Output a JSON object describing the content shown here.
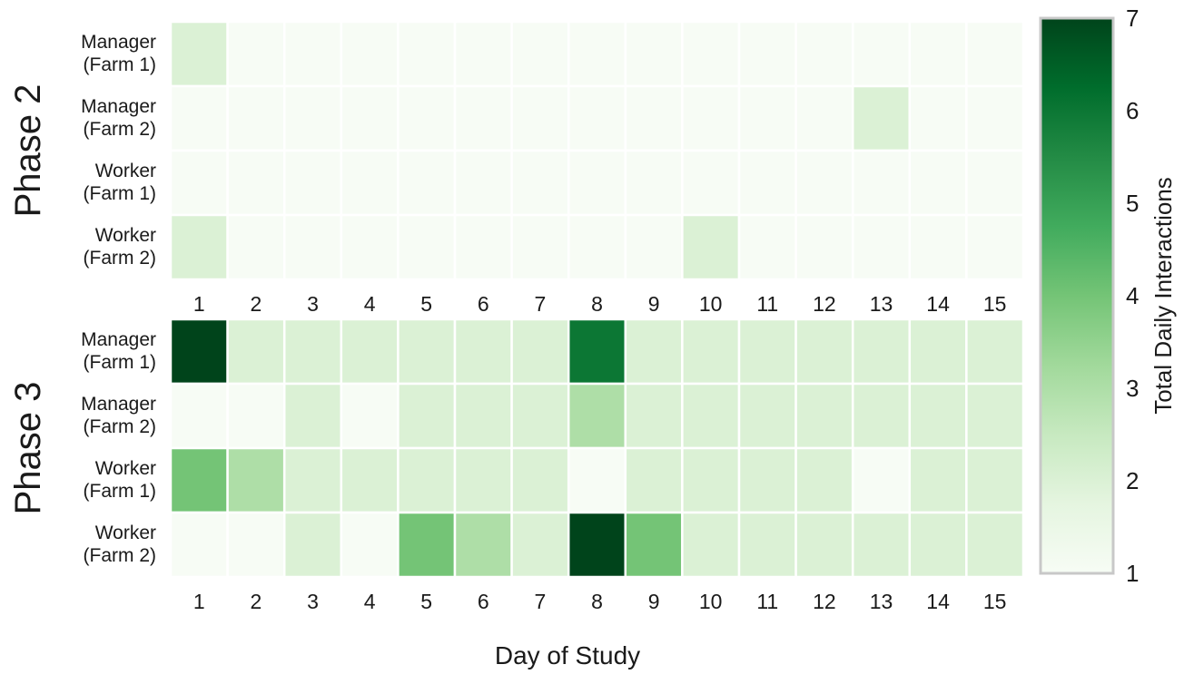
{
  "chart_data": {
    "type": "heatmap",
    "xlabel": "Day of Study",
    "colorbar": {
      "label": "Total Daily Interactions",
      "min": 1,
      "max": 7,
      "ticks": [
        "1",
        "2",
        "3",
        "4",
        "5",
        "6",
        "7"
      ],
      "colors": [
        "#f7fcf5",
        "#e5f5e0",
        "#c7e9c0",
        "#a1d99b",
        "#74c476",
        "#41ab5d",
        "#238b45",
        "#006d2c",
        "#00441b"
      ]
    },
    "x_ticks": [
      "1",
      "2",
      "3",
      "4",
      "5",
      "6",
      "7",
      "8",
      "9",
      "10",
      "11",
      "12",
      "13",
      "14",
      "15"
    ],
    "panels": [
      {
        "label": "Phase 2",
        "rows": [
          "Manager\n(Farm 1)",
          "Manager\n(Farm 2)",
          "Worker\n(Farm 1)",
          "Worker\n(Farm 2)"
        ],
        "values": [
          [
            2,
            1,
            1,
            1,
            1,
            1,
            1,
            1,
            1,
            1,
            1,
            1,
            1,
            1,
            1
          ],
          [
            1,
            1,
            1,
            1,
            1,
            1,
            1,
            1,
            1,
            1,
            1,
            1,
            2,
            1,
            1
          ],
          [
            1,
            1,
            1,
            1,
            1,
            1,
            1,
            1,
            1,
            1,
            1,
            1,
            1,
            1,
            1
          ],
          [
            2,
            1,
            1,
            1,
            1,
            1,
            1,
            1,
            1,
            2,
            1,
            1,
            1,
            1,
            1
          ]
        ]
      },
      {
        "label": "Phase 3",
        "rows": [
          "Manager\n(Farm 1)",
          "Manager\n(Farm 2)",
          "Worker\n(Farm 1)",
          "Worker\n(Farm 2)"
        ],
        "values": [
          [
            7,
            2,
            2,
            2,
            2,
            2,
            2,
            6,
            2,
            2,
            2,
            2,
            2,
            2,
            2
          ],
          [
            1,
            1,
            2,
            1,
            2,
            2,
            2,
            3,
            2,
            2,
            2,
            2,
            2,
            2,
            2
          ],
          [
            4,
            3,
            2,
            2,
            2,
            2,
            2,
            1,
            2,
            2,
            2,
            2,
            1,
            2,
            2
          ],
          [
            1,
            1,
            2,
            1,
            4,
            3,
            2,
            7,
            4,
            2,
            2,
            2,
            2,
            2,
            2
          ]
        ]
      }
    ]
  }
}
